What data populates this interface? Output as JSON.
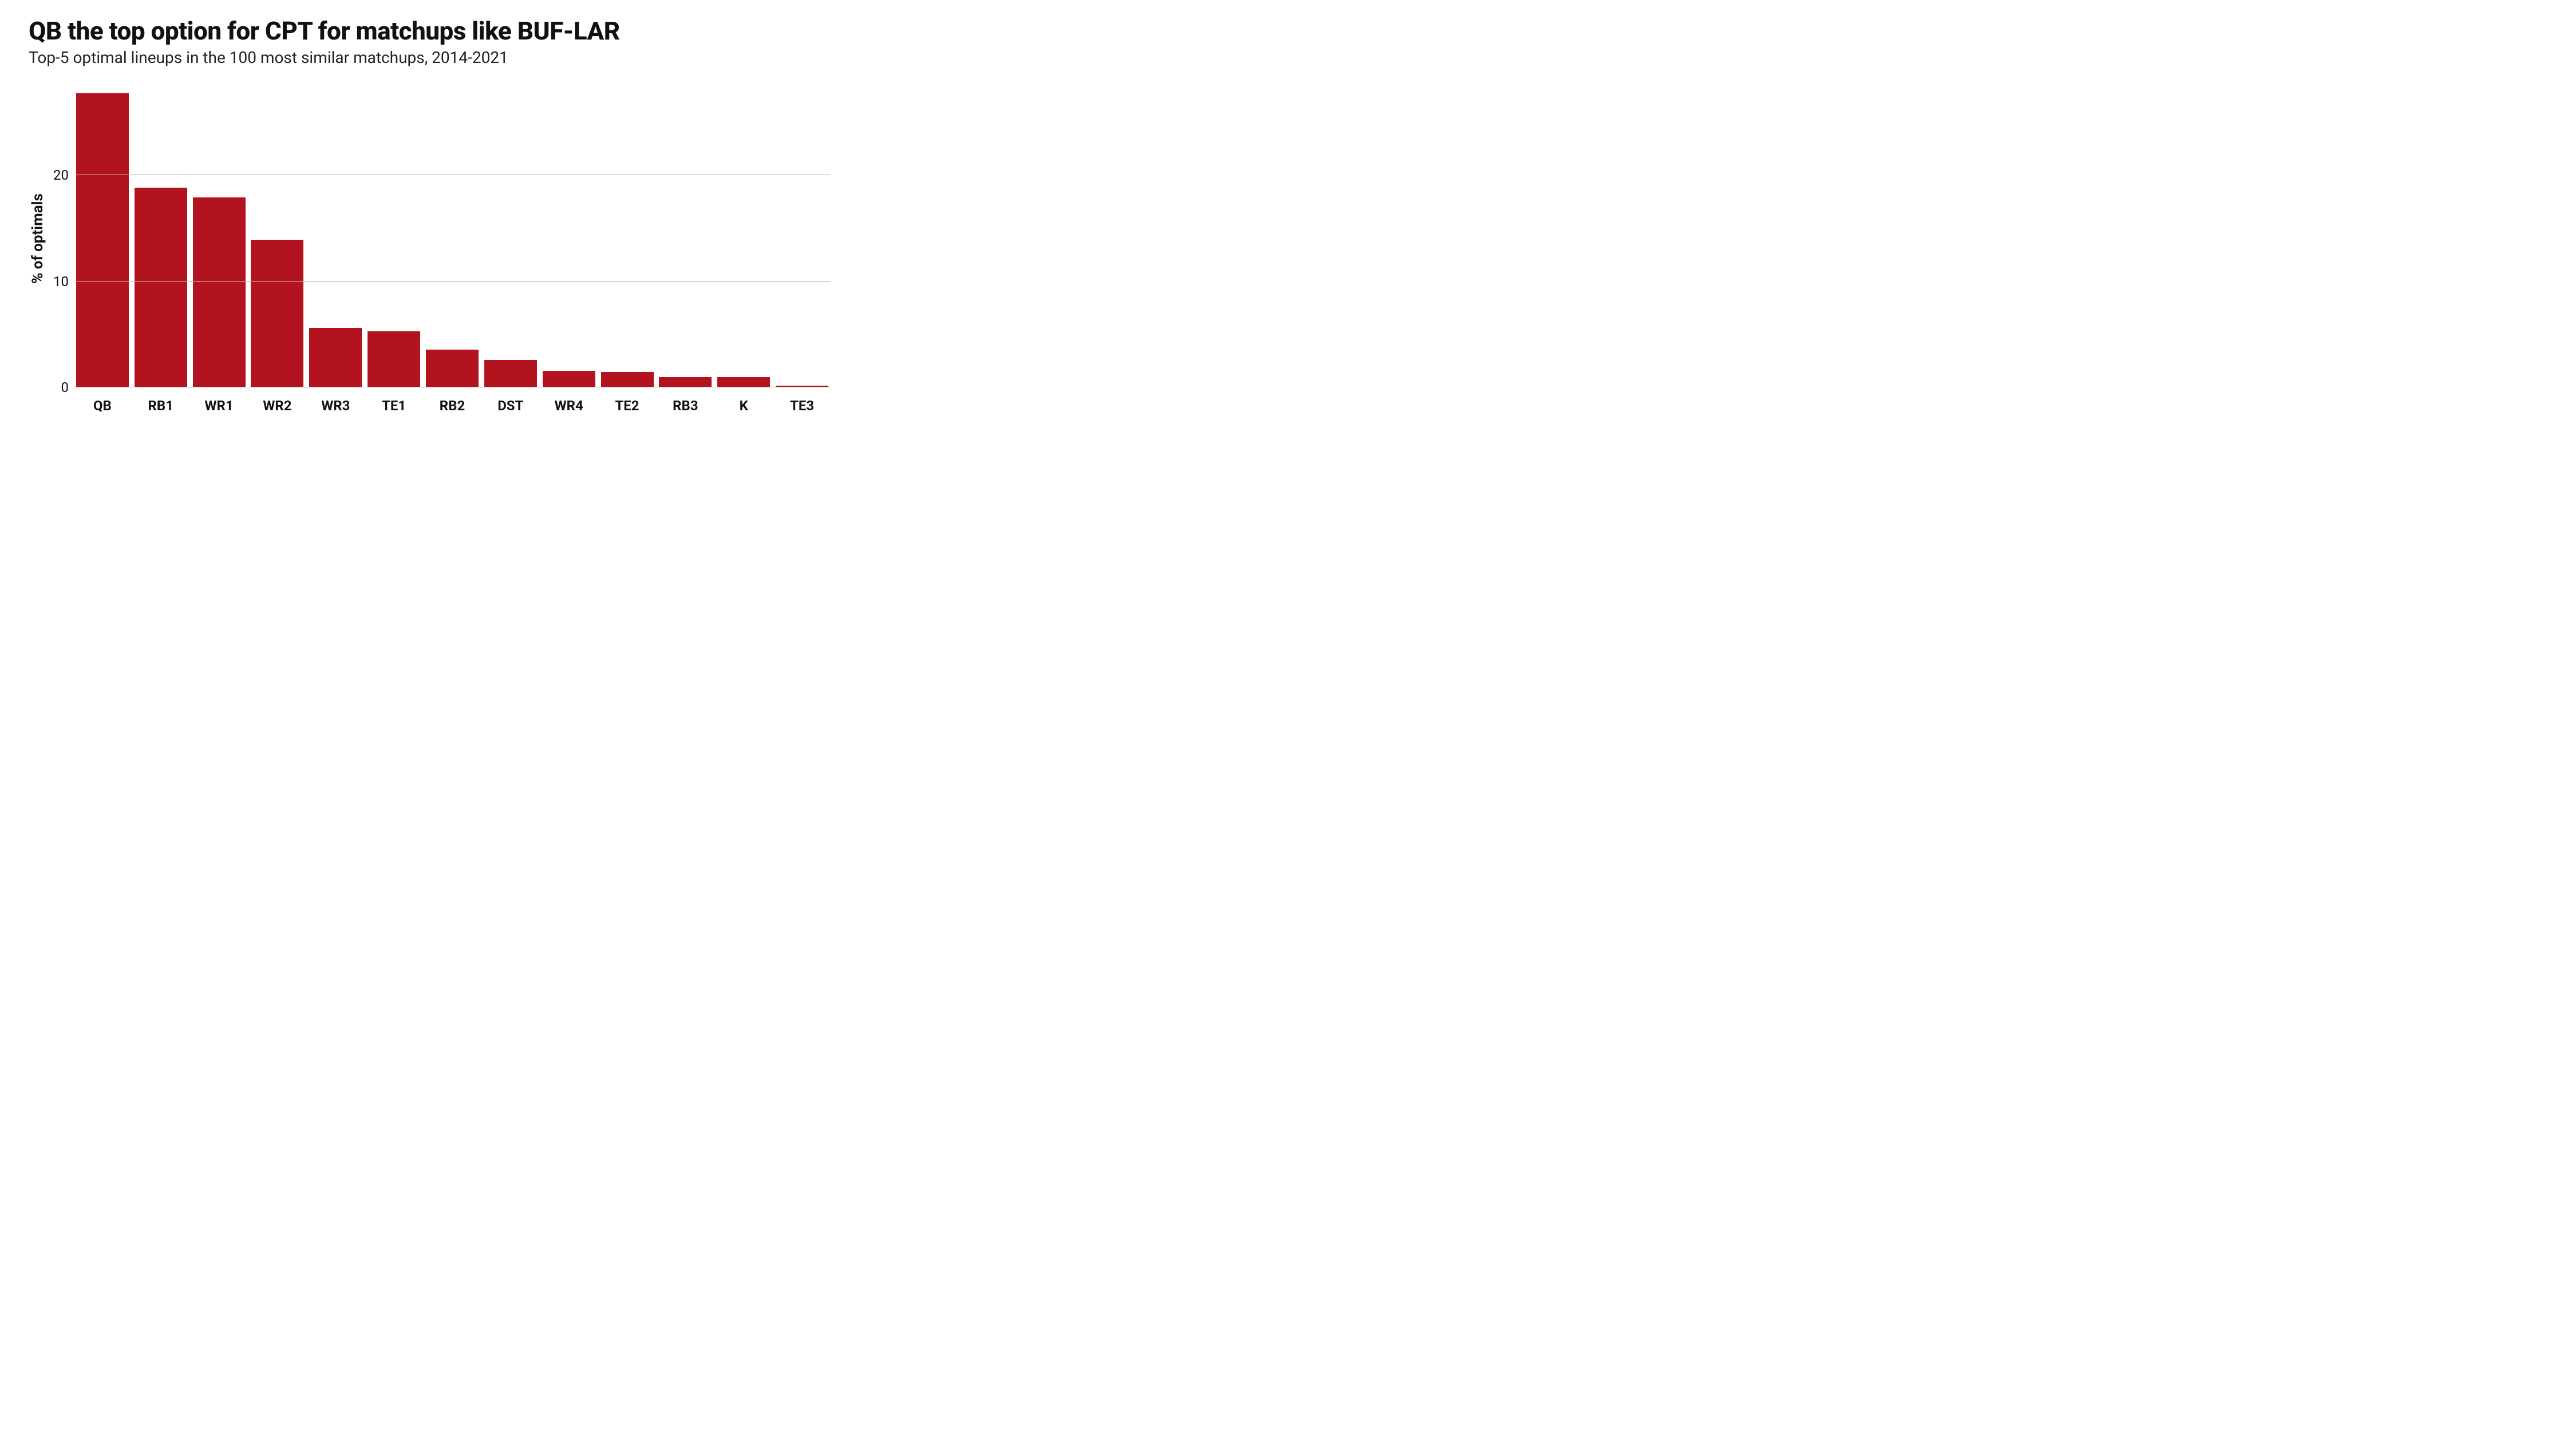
{
  "chart": {
    "type": "bar",
    "title": "QB the top option for CPT for matchups like BUF-LAR",
    "title_fontsize": 44,
    "subtitle": "Top-5 optimal lineups in the 100 most similar matchups, 2014-2021",
    "subtitle_fontsize": 28,
    "ylabel": "% of optimals",
    "ylabel_fontsize": 26,
    "tick_fontsize": 24,
    "xlabel_fontsize": 24,
    "ylim": [
      0,
      28
    ],
    "yticks": [
      0,
      10,
      20
    ],
    "grid_color": "#b8b8b8",
    "background_color": "#ffffff",
    "bar_color": "#b3121f",
    "bar_width": 0.94,
    "categories": [
      "QB",
      "RB1",
      "WR1",
      "WR2",
      "WR3",
      "TE1",
      "RB2",
      "DST",
      "WR4",
      "TE2",
      "RB3",
      "K",
      "TE3"
    ],
    "values": [
      27.7,
      18.8,
      17.9,
      13.9,
      5.6,
      5.3,
      3.6,
      2.6,
      1.6,
      1.5,
      1.0,
      1.0,
      0.2
    ]
  }
}
